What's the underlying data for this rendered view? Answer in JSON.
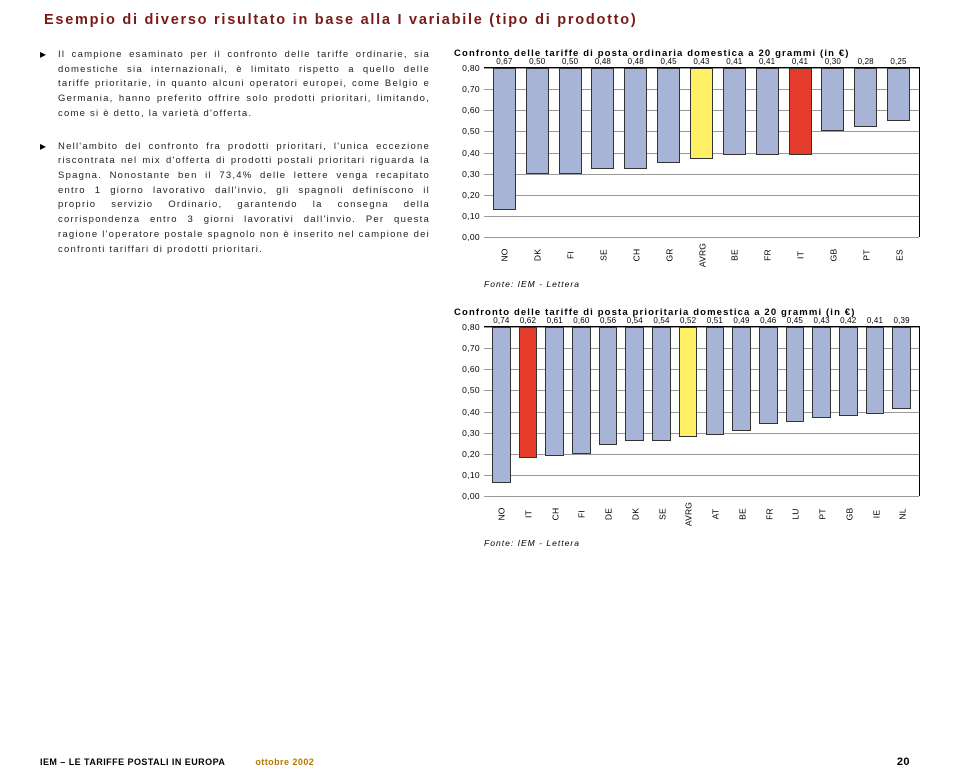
{
  "title": "Esempio di diverso risultato in base alla I variabile (tipo di prodotto)",
  "paragraphs": {
    "p1": "Il campione esaminato per il confronto delle tariffe ordinarie, sia domestiche sia internazionali, è limitato rispetto a quello delle tariffe prioritarie, in quanto alcuni operatori europei, come Belgio e Germania, hanno preferito offrire solo prodotti prioritari, limitando, come si è detto, la varietà d'offerta.",
    "p2": "Nell'ambito del confronto fra prodotti prioritari, l'unica eccezione riscontrata nel mix d'offerta di prodotti postali prioritari riguarda la Spagna. Nonostante ben il 73,4% delle lettere venga recapitato entro 1 giorno lavorativo dall'invio, gli spagnoli definiscono il proprio servizio Ordinario, garantendo la consegna della corrispondenza entro 3 giorni lavorativi dall'invio. Per questa ragione l'operatore postale spagnolo non è inserito nel campione dei confronti tariffari di prodotti prioritari."
  },
  "chart1": {
    "title": "Confronto delle tariffe di posta ordinaria domestica a 20 grammi (in €)",
    "ymax": 0.8,
    "ytick_step": 0.1,
    "categories": [
      "NO",
      "DK",
      "FI",
      "SE",
      "CH",
      "GR",
      "AVRG",
      "BE",
      "FR",
      "IT",
      "GB",
      "PT",
      "ES"
    ],
    "values": [
      0.67,
      0.5,
      0.5,
      0.48,
      0.48,
      0.45,
      0.43,
      0.41,
      0.41,
      0.41,
      0.3,
      0.28,
      0.25
    ],
    "value_labels": [
      "0,67",
      "0,50",
      "0,50",
      "0,48",
      "0,48",
      "0,45",
      "0,43",
      "0,41",
      "0,41",
      "0,41",
      "0,30",
      "0,28",
      "0,25"
    ],
    "colors": [
      "#a8b4d6",
      "#a8b4d6",
      "#a8b4d6",
      "#a8b4d6",
      "#a8b4d6",
      "#a8b4d6",
      "#fff066",
      "#a8b4d6",
      "#a8b4d6",
      "#e43b2a",
      "#a8b4d6",
      "#a8b4d6",
      "#a8b4d6"
    ],
    "source": "Fonte: IEM - Lettera"
  },
  "chart2": {
    "title": "Confronto delle tariffe di posta prioritaria domestica a 20 grammi (in €)",
    "ymax": 0.8,
    "ytick_step": 0.1,
    "categories": [
      "NO",
      "IT",
      "CH",
      "FI",
      "DE",
      "DK",
      "SE",
      "AVRG",
      "AT",
      "BE",
      "FR",
      "LU",
      "PT",
      "GB",
      "IE",
      "NL"
    ],
    "values": [
      0.74,
      0.62,
      0.61,
      0.6,
      0.56,
      0.54,
      0.54,
      0.52,
      0.51,
      0.49,
      0.46,
      0.45,
      0.43,
      0.42,
      0.41,
      0.39
    ],
    "value_labels": [
      "0,74",
      "0,62",
      "0,61",
      "0,60",
      "0,56",
      "0,54",
      "0,54",
      "0,52",
      "0,51",
      "0,49",
      "0,46",
      "0,45",
      "0,43",
      "0,42",
      "0,41",
      "0,39"
    ],
    "colors": [
      "#a8b4d6",
      "#e43b2a",
      "#a8b4d6",
      "#a8b4d6",
      "#a8b4d6",
      "#a8b4d6",
      "#a8b4d6",
      "#fff066",
      "#a8b4d6",
      "#a8b4d6",
      "#a8b4d6",
      "#a8b4d6",
      "#a8b4d6",
      "#a8b4d6",
      "#a8b4d6",
      "#a8b4d6"
    ],
    "source": "Fonte: IEM - Lettera"
  },
  "footer": {
    "left": "IEM – LE TARIFFE POSTALI IN EUROPA",
    "mid": "ottobre 2002",
    "page": "20"
  }
}
